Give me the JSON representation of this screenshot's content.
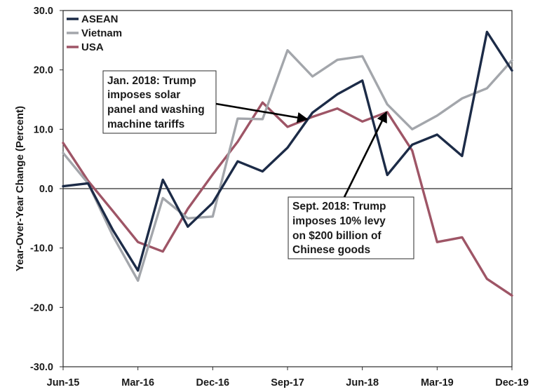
{
  "chart_data": {
    "type": "line",
    "ylabel": "Year-Over-Year Change (Percent)",
    "ylim": [
      -30,
      30
    ],
    "yticks": [
      "30.0",
      "20.0",
      "10.0",
      "0.0",
      "-10.0",
      "-20.0",
      "-30.0"
    ],
    "ytick_values": [
      30,
      20,
      10,
      0,
      -10,
      -20,
      -30
    ],
    "x_tick_labels": [
      "Jun-15",
      "Mar-16",
      "Dec-16",
      "Sep-17",
      "Jun-18",
      "Mar-19",
      "Dec-19"
    ],
    "x": [
      "Jun-15",
      "Sep-15",
      "Dec-15",
      "Mar-16",
      "Jun-16",
      "Sep-16",
      "Dec-16",
      "Mar-17",
      "Jun-17",
      "Sep-17",
      "Dec-17",
      "Mar-18",
      "Jun-18",
      "Sep-18",
      "Dec-18",
      "Mar-19",
      "Jun-19",
      "Sep-19",
      "Dec-19"
    ],
    "grid": false,
    "legend_position": "top-left",
    "series": [
      {
        "name": "ASEAN",
        "color": "#1c2b47",
        "values": [
          0.4,
          0.9,
          -7.0,
          -13.8,
          1.5,
          -6.4,
          -2.4,
          4.6,
          2.9,
          6.9,
          12.8,
          15.9,
          18.2,
          2.3,
          7.4,
          9.1,
          5.5,
          26.4,
          19.9
        ]
      },
      {
        "name": "Vietnam",
        "color": "#a3a6ab",
        "values": [
          6.0,
          0.9,
          -8.0,
          -15.5,
          -1.6,
          -5.0,
          -4.7,
          11.8,
          11.7,
          23.3,
          18.9,
          21.7,
          22.3,
          14.2,
          10.0,
          12.3,
          15.2,
          16.9,
          21.6
        ]
      },
      {
        "name": "USA",
        "color": "#9e5566",
        "values": [
          7.7,
          1.3,
          -3.8,
          -9.0,
          -10.6,
          -3.4,
          2.4,
          7.9,
          14.5,
          10.4,
          12.1,
          13.5,
          11.3,
          12.9,
          6.4,
          -9.0,
          -8.2,
          -15.2,
          -18.0
        ]
      }
    ],
    "annotations": [
      {
        "lines": [
          "Jan. 2018: Trump",
          "imposes solar",
          "panel and washing",
          "machine tariffs"
        ]
      },
      {
        "lines": [
          "Sept. 2018: Trump",
          "imposes 10% levy",
          "on $200 billion of",
          "Chinese goods"
        ]
      }
    ]
  }
}
